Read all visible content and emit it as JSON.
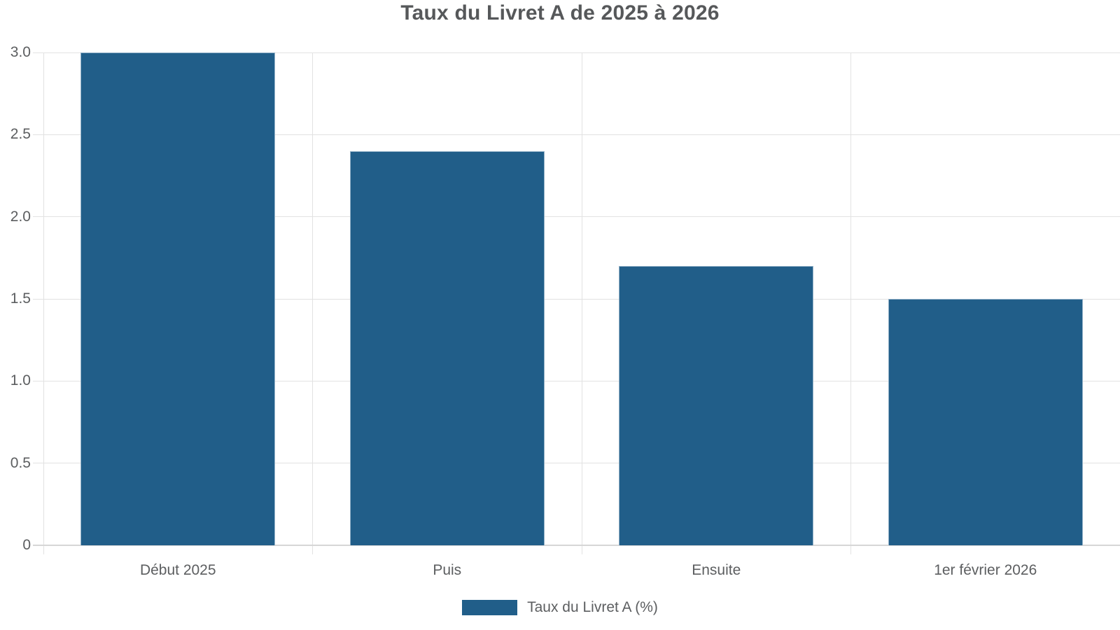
{
  "chart_data": {
    "type": "bar",
    "title": "Taux du Livret A de 2025 à 2026",
    "categories": [
      "Début 2025",
      "Puis",
      "Ensuite",
      "1er février 2026"
    ],
    "values": [
      3.0,
      2.4,
      1.7,
      1.5
    ],
    "series_name": "Taux du Livret A (%)",
    "xlabel": "",
    "ylabel": "",
    "ylim": [
      0,
      3.0
    ],
    "ytick_labels": [
      "0",
      "0.5",
      "1.0",
      "1.5",
      "2.0",
      "2.5",
      "3.0"
    ],
    "grid": true,
    "legend_position": "bottom",
    "colors": {
      "bar": "#215E89",
      "bar_border": "#93B2C8",
      "grid": "#E2E2E2",
      "axis": "#D6D6D6",
      "title_text": "#56585A",
      "tick_text": "#5C5E60"
    }
  }
}
